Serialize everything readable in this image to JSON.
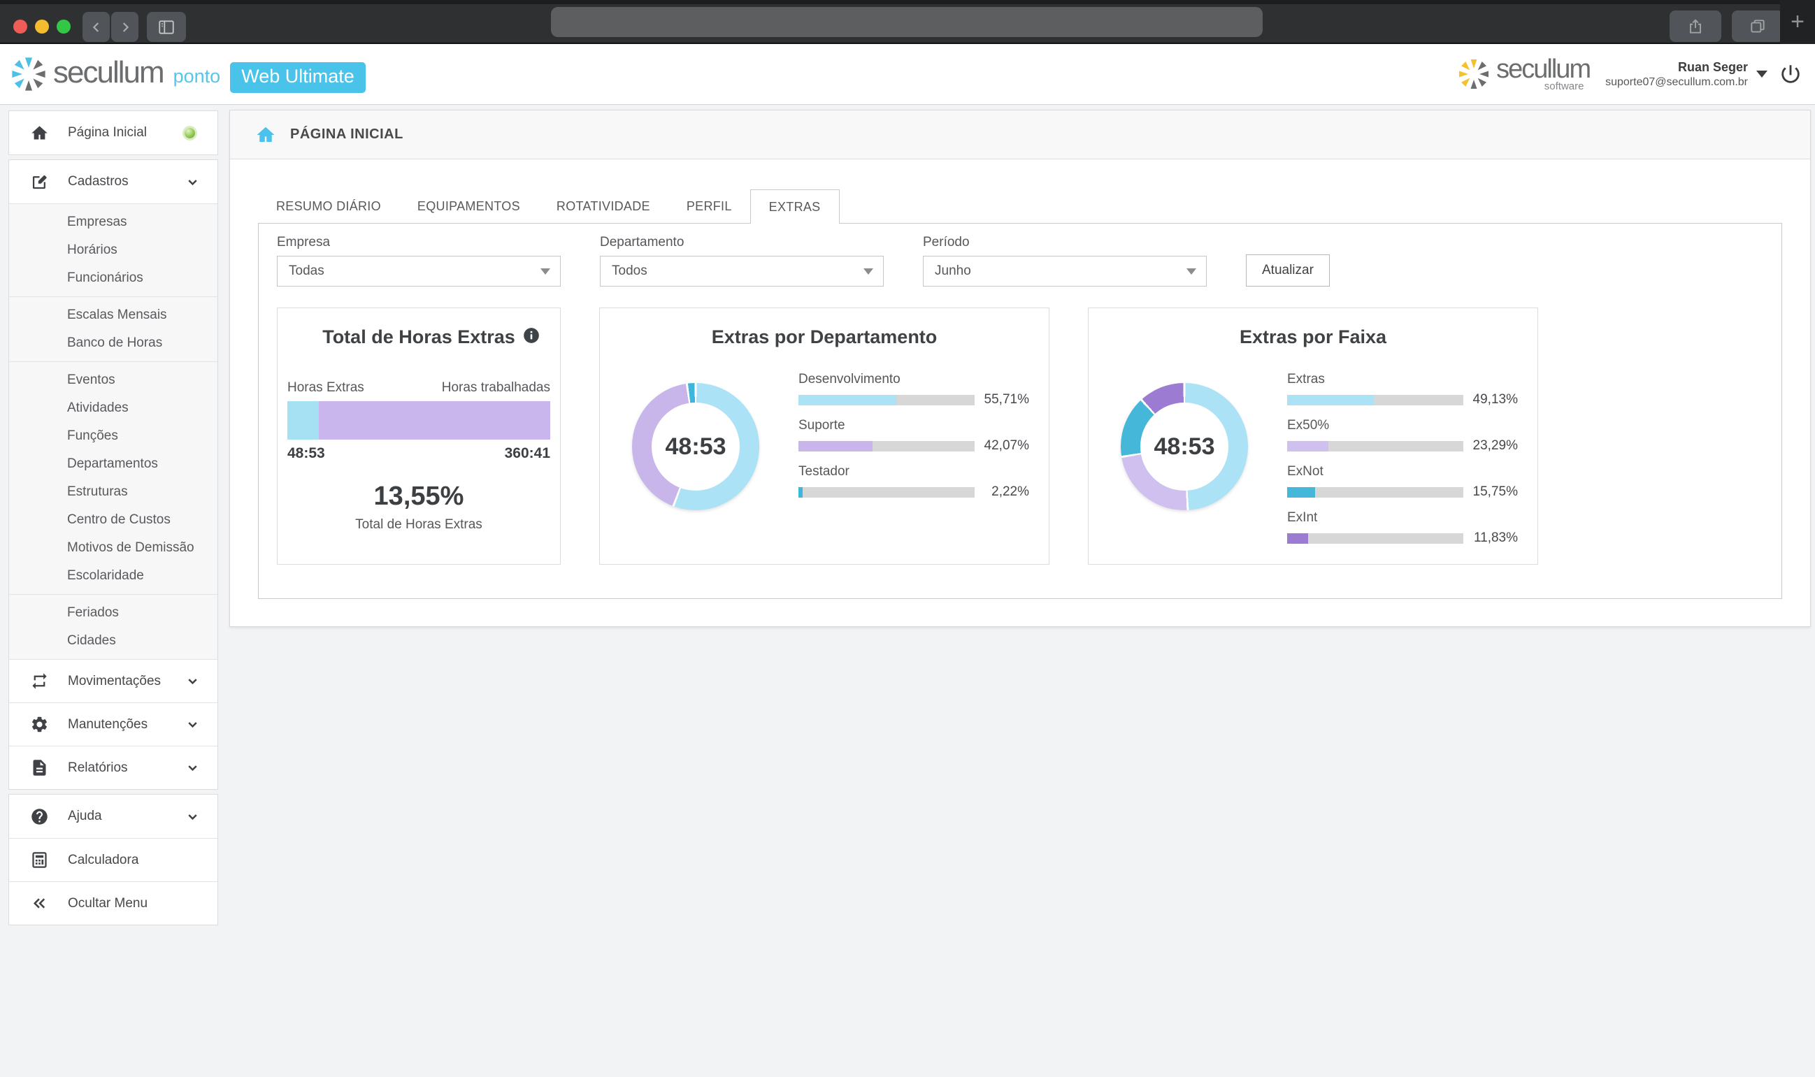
{
  "colors": {
    "accent": "#49c3ea",
    "brand_gray": "#6b6d6f",
    "brand_yellow": "#f6c12e"
  },
  "browser": {
    "address_value": "",
    "buttons": [
      "window-close",
      "window-minimize",
      "window-zoom",
      "back",
      "forward",
      "sidebar-toggle",
      "share",
      "tabs-overview",
      "new-tab"
    ],
    "new_tab_glyph": "+"
  },
  "header": {
    "brand": "secullum",
    "product": "ponto",
    "edition_badge": "Web Ultimate",
    "right_brand": "secullum",
    "right_tagline": "software",
    "user_name": "Ruan Seger",
    "user_email": "suporte07@secullum.com.br"
  },
  "sidebar": {
    "sections": [
      {
        "items": [
          {
            "icon": "home",
            "label": "Página Inicial",
            "indicator": true
          }
        ]
      },
      {
        "items": [
          {
            "icon": "edit",
            "label": "Cadastros",
            "expandable": true
          },
          {
            "submenu": [
              [
                "Empresas",
                "Horários",
                "Funcionários"
              ],
              [
                "Escalas Mensais",
                "Banco de Horas"
              ],
              [
                "Eventos",
                "Atividades",
                "Funções",
                "Departamentos",
                "Estruturas",
                "Centro de Custos",
                "Motivos de Demissão",
                "Escolaridade"
              ],
              [
                "Feriados",
                "Cidades"
              ]
            ]
          },
          {
            "icon": "repeat",
            "label": "Movimentações",
            "expandable": true
          },
          {
            "icon": "gear",
            "label": "Manutenções",
            "expandable": true
          },
          {
            "icon": "report",
            "label": "Relatórios",
            "expandable": true
          }
        ]
      },
      {
        "items": [
          {
            "icon": "help",
            "label": "Ajuda",
            "expandable": true
          },
          {
            "icon": "calculator",
            "label": "Calculadora"
          },
          {
            "icon": "collapse",
            "label": "Ocultar Menu"
          }
        ]
      }
    ]
  },
  "page": {
    "title": "PÁGINA INICIAL"
  },
  "tabs": {
    "items": [
      "RESUMO DIÁRIO",
      "EQUIPAMENTOS",
      "ROTATIVIDADE",
      "PERFIL",
      "EXTRAS"
    ],
    "active_index": 4
  },
  "filters": {
    "fields": [
      {
        "label": "Empresa",
        "value": "Todas"
      },
      {
        "label": "Departamento",
        "value": "Todos"
      },
      {
        "label": "Período",
        "value": "Junho"
      }
    ],
    "button_label": "Atualizar"
  },
  "chart_data": [
    {
      "type": "bar",
      "orientation": "horizontal-stacked",
      "title": "Total de Horas Extras",
      "series": [
        {
          "name": "Horas Extras",
          "value": "48:53",
          "minutes": 2933,
          "color": "#a5e1f2"
        },
        {
          "name": "Horas trabalhadas",
          "value": "360:41",
          "minutes": 21641,
          "color": "#c9b6ec"
        }
      ],
      "summary_value": "13,55%",
      "summary_label": "Total de Horas Extras"
    },
    {
      "type": "pie",
      "title": "Extras por Departamento",
      "center_label": "48:53",
      "legend_position": "right",
      "slices": [
        {
          "label": "Desenvolvimento",
          "value": 55.71,
          "display": "55,71%",
          "color": "#abe2f5"
        },
        {
          "label": "Suporte",
          "value": 42.07,
          "display": "42,07%",
          "color": "#c8b5ea"
        },
        {
          "label": "Testador",
          "value": 2.22,
          "display": "2,22%",
          "color": "#3cb6da"
        }
      ]
    },
    {
      "type": "pie",
      "title": "Extras por Faixa",
      "center_label": "48:53",
      "legend_position": "right",
      "slices": [
        {
          "label": "Extras",
          "value": 49.13,
          "display": "49,13%",
          "color": "#abe2f5"
        },
        {
          "label": "Ex50%",
          "value": 23.29,
          "display": "23,29%",
          "color": "#cfc0ef"
        },
        {
          "label": "ExNot",
          "value": 15.75,
          "display": "15,75%",
          "color": "#45b7d9"
        },
        {
          "label": "ExInt",
          "value": 11.83,
          "display": "11,83%",
          "color": "#9c7bd3"
        }
      ]
    }
  ]
}
